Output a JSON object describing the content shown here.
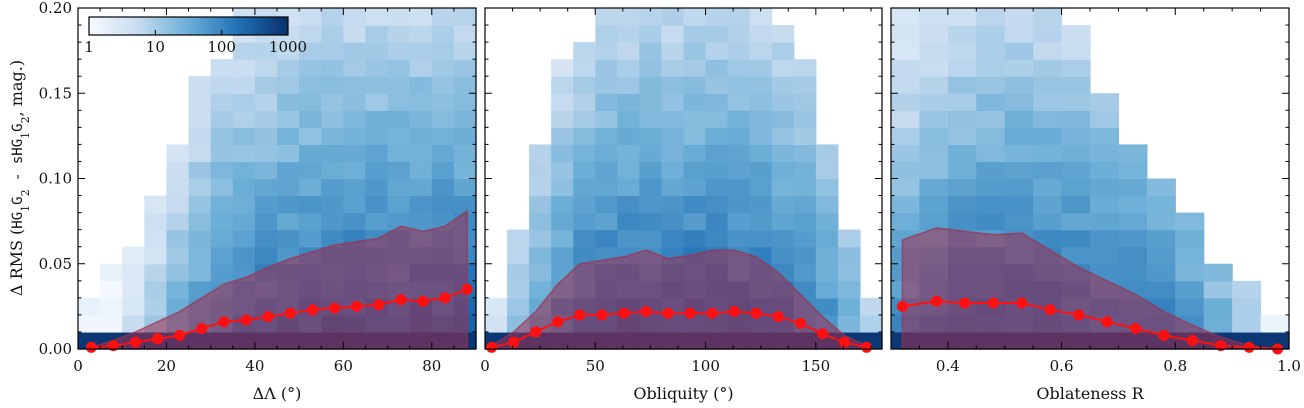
{
  "ylabel_parts": [
    "Δ RMS (",
    "HG",
    "1",
    "G",
    "2",
    " - s",
    "HG",
    "1",
    "G",
    "2",
    ", mag.)"
  ],
  "colorbar": {
    "scale": "log",
    "range": [
      1,
      1000
    ],
    "ticks": [
      "1",
      "10",
      "100",
      "1000"
    ],
    "colors": [
      "#f7fbff",
      "#c6dbef",
      "#6baed6",
      "#2171b5",
      "#08306b"
    ]
  },
  "colors": {
    "median": "#ff1010",
    "band": "#a03050"
  },
  "chart_data": [
    {
      "type": "heatmap",
      "xlabel": "ΔΛ (°)",
      "xlim": [
        0,
        90
      ],
      "ylim": [
        0,
        0.2
      ],
      "xticks": [
        0,
        20,
        40,
        60,
        80
      ],
      "xtick_labels": [
        "0",
        "20",
        "40",
        "60",
        "80"
      ],
      "yticks": [
        0,
        0.05,
        0.1,
        0.15,
        0.2
      ],
      "ytick_labels": [
        "0.00",
        "0.05",
        "0.10",
        "0.15",
        "0.20"
      ],
      "grid": false,
      "median_x": [
        3,
        8,
        13,
        18,
        23,
        28,
        33,
        38,
        43,
        48,
        53,
        58,
        63,
        68,
        73,
        78,
        83,
        88
      ],
      "median_y": [
        0.001,
        0.002,
        0.004,
        0.006,
        0.008,
        0.012,
        0.016,
        0.017,
        0.019,
        0.021,
        0.023,
        0.024,
        0.025,
        0.026,
        0.029,
        0.028,
        0.03,
        0.035
      ],
      "band_upper": [
        0.001,
        0.005,
        0.01,
        0.016,
        0.022,
        0.03,
        0.038,
        0.042,
        0.048,
        0.053,
        0.057,
        0.061,
        0.063,
        0.065,
        0.072,
        0.069,
        0.072,
        0.081
      ],
      "band_lower": [
        0,
        0,
        0,
        0,
        0,
        0,
        0,
        0,
        0,
        0,
        0,
        0,
        0,
        0,
        0,
        0,
        0,
        0
      ],
      "heat_profile": [
        0.5,
        2,
        6,
        15,
        40,
        80,
        140,
        180,
        220,
        250,
        280,
        300,
        320,
        320,
        330,
        330,
        320,
        300
      ],
      "heat_top": [
        0.03,
        0.05,
        0.06,
        0.085,
        0.12,
        0.155,
        0.17,
        0.2,
        0.2,
        0.2,
        0.2,
        0.2,
        0.2,
        0.2,
        0.2,
        0.2,
        0.2,
        0.2
      ]
    },
    {
      "type": "heatmap",
      "xlabel": "Obliquity (°)",
      "xlim": [
        0,
        180
      ],
      "ylim": [
        0,
        0.2
      ],
      "xticks": [
        0,
        50,
        100,
        150
      ],
      "xtick_labels": [
        "0",
        "50",
        "100",
        "150"
      ],
      "yticks": [
        0,
        0.05,
        0.1,
        0.15,
        0.2
      ],
      "grid": false,
      "median_x": [
        3,
        13,
        23,
        33,
        43,
        53,
        63,
        73,
        83,
        93,
        103,
        113,
        123,
        133,
        143,
        153,
        163,
        173
      ],
      "median_y": [
        0.001,
        0.004,
        0.01,
        0.016,
        0.02,
        0.02,
        0.021,
        0.022,
        0.021,
        0.021,
        0.021,
        0.022,
        0.021,
        0.019,
        0.015,
        0.009,
        0.004,
        0.001
      ],
      "band_upper": [
        0.002,
        0.01,
        0.022,
        0.038,
        0.05,
        0.052,
        0.054,
        0.058,
        0.053,
        0.055,
        0.058,
        0.058,
        0.054,
        0.045,
        0.032,
        0.019,
        0.008,
        0.002
      ],
      "band_lower": [
        0,
        0,
        0,
        0,
        0,
        0,
        0,
        0,
        0,
        0,
        0,
        0,
        0,
        0,
        0,
        0,
        0,
        0
      ],
      "heat_profile": [
        4,
        20,
        60,
        140,
        220,
        280,
        320,
        340,
        350,
        350,
        340,
        330,
        300,
        250,
        180,
        100,
        40,
        10
      ],
      "heat_top": [
        0.03,
        0.07,
        0.12,
        0.165,
        0.18,
        0.2,
        0.2,
        0.2,
        0.2,
        0.2,
        0.2,
        0.2,
        0.2,
        0.19,
        0.165,
        0.12,
        0.07,
        0.03
      ]
    },
    {
      "type": "heatmap",
      "xlabel": "Oblateness R",
      "xlim": [
        0.3,
        1.0
      ],
      "ylim": [
        0,
        0.2
      ],
      "xticks": [
        0.4,
        0.6,
        0.8,
        1.0
      ],
      "xtick_labels": [
        "0.4",
        "0.6",
        "0.8",
        "1.0"
      ],
      "yticks": [
        0,
        0.05,
        0.1,
        0.15,
        0.2
      ],
      "grid": false,
      "median_x": [
        0.32,
        0.38,
        0.43,
        0.48,
        0.53,
        0.58,
        0.63,
        0.68,
        0.73,
        0.78,
        0.83,
        0.88,
        0.93,
        0.98
      ],
      "median_y": [
        0.025,
        0.028,
        0.027,
        0.027,
        0.027,
        0.023,
        0.02,
        0.016,
        0.012,
        0.008,
        0.005,
        0.002,
        0.001,
        0.0
      ],
      "band_upper": [
        0.064,
        0.071,
        0.069,
        0.067,
        0.068,
        0.058,
        0.048,
        0.04,
        0.032,
        0.022,
        0.014,
        0.007,
        0.002,
        0.0
      ],
      "band_lower": [
        0,
        0,
        0,
        0,
        0,
        0,
        0,
        0,
        0,
        0,
        0,
        0,
        0,
        0
      ],
      "heat_profile": [
        120,
        200,
        260,
        300,
        320,
        300,
        260,
        220,
        180,
        140,
        90,
        40,
        12,
        3
      ],
      "heat_top": [
        0.2,
        0.2,
        0.2,
        0.2,
        0.2,
        0.2,
        0.185,
        0.15,
        0.12,
        0.1,
        0.08,
        0.05,
        0.035,
        0.02
      ]
    }
  ]
}
